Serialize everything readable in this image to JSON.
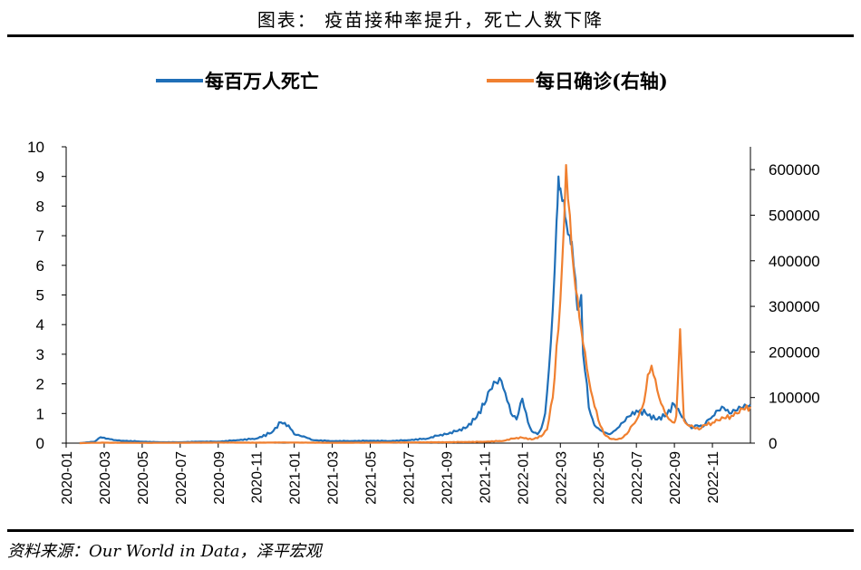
{
  "header": {
    "title": "图表： 疫苗接种率提升，死亡人数下降"
  },
  "footer": {
    "source": "资料来源：Our World in Data，泽平宏观"
  },
  "chart_data": {
    "type": "line",
    "title": "图表： 疫苗接种率提升，死亡人数下降",
    "legend_position": "top",
    "x_ticks": [
      "2020-01",
      "2020-03",
      "2020-05",
      "2020-07",
      "2020-09",
      "2020-11",
      "2021-01",
      "2021-03",
      "2021-05",
      "2021-07",
      "2021-09",
      "2021-11",
      "2022-01",
      "2022-03",
      "2022-05",
      "2022-07",
      "2022-09",
      "2022-11"
    ],
    "x_range_months": [
      0,
      36
    ],
    "y_left": {
      "min": 0,
      "max": 10,
      "ticks": [
        "0",
        "1",
        "2",
        "3",
        "4",
        "5",
        "6",
        "7",
        "8",
        "9",
        "10"
      ]
    },
    "y_right": {
      "min": 0,
      "max": 650000,
      "ticks": [
        "0",
        "100000",
        "200000",
        "300000",
        "400000",
        "500000",
        "600000"
      ]
    },
    "series": [
      {
        "name": "每百万人死亡",
        "axis": "left",
        "color": "#1f6fb8",
        "months": [
          0.7,
          1.5,
          1.8,
          2.2,
          2.6,
          3.0,
          4.0,
          5.0,
          6.0,
          7.0,
          8.0,
          9.0,
          10.0,
          10.8,
          11.3,
          11.7,
          12.0,
          12.3,
          12.6,
          13.0,
          14.0,
          15.0,
          16.0,
          17.0,
          18.0,
          19.0,
          19.5,
          20.0,
          20.5,
          21.0,
          21.5,
          22.0,
          22.3,
          22.6,
          22.9,
          23.1,
          23.4,
          23.7,
          24.0,
          24.3,
          24.5,
          24.8,
          25.0,
          25.2,
          25.4,
          25.6,
          25.8,
          25.9,
          26.0,
          26.2,
          26.3,
          26.5,
          26.6,
          26.8,
          26.9,
          27.1,
          27.2,
          27.4,
          27.5,
          27.7,
          27.8,
          28.0,
          28.2,
          28.4,
          28.6,
          28.8,
          29.0,
          29.3,
          29.6,
          30.0,
          30.5,
          31.0,
          31.5,
          32.0,
          32.3,
          32.6,
          32.9,
          33.2,
          33.5,
          33.8,
          34.0,
          34.3,
          34.6,
          34.9,
          35.2,
          35.5,
          35.8,
          36.0
        ],
        "values": [
          0.0,
          0.05,
          0.2,
          0.15,
          0.1,
          0.08,
          0.05,
          0.03,
          0.03,
          0.05,
          0.05,
          0.1,
          0.15,
          0.35,
          0.7,
          0.6,
          0.3,
          0.25,
          0.2,
          0.1,
          0.07,
          0.07,
          0.08,
          0.07,
          0.1,
          0.15,
          0.25,
          0.3,
          0.4,
          0.5,
          0.8,
          1.3,
          1.8,
          2.05,
          2.1,
          1.7,
          1.0,
          0.8,
          1.5,
          0.7,
          0.4,
          0.3,
          0.5,
          1.0,
          2.5,
          4.5,
          7.5,
          9.0,
          8.6,
          8.2,
          7.5,
          7.0,
          6.8,
          5.5,
          4.5,
          5.0,
          3.0,
          2.0,
          1.2,
          0.8,
          0.6,
          0.5,
          0.4,
          0.35,
          0.3,
          0.4,
          0.5,
          0.7,
          0.9,
          1.1,
          1.0,
          0.8,
          0.9,
          1.3,
          1.0,
          0.7,
          0.5,
          0.6,
          0.55,
          0.8,
          0.9,
          1.1,
          1.2,
          1.0,
          1.1,
          1.2,
          1.25,
          1.3
        ]
      },
      {
        "name": "每日确诊(右轴)",
        "axis": "right",
        "color": "#f08030",
        "months": [
          0.7,
          2.0,
          4.0,
          6.0,
          8.0,
          10.0,
          11.5,
          12.0,
          14.0,
          16.0,
          18.0,
          20.0,
          21.0,
          22.0,
          23.0,
          23.5,
          24.0,
          24.5,
          25.0,
          25.3,
          25.6,
          25.9,
          26.1,
          26.3,
          26.5,
          26.7,
          26.9,
          27.1,
          27.3,
          27.5,
          27.7,
          28.0,
          28.3,
          28.6,
          28.9,
          29.2,
          29.5,
          29.8,
          30.0,
          30.2,
          30.4,
          30.6,
          30.8,
          31.0,
          31.2,
          31.4,
          31.6,
          31.8,
          32.0,
          32.1,
          32.3,
          32.5,
          32.7,
          33.0,
          33.3,
          33.6,
          34.0,
          34.3,
          34.6,
          35.0,
          35.3,
          35.6,
          36.0
        ],
        "values": [
          0,
          1000,
          500,
          800,
          1200,
          1000,
          1500,
          1200,
          800,
          1000,
          1500,
          2000,
          2500,
          3000,
          5000,
          10000,
          12000,
          8000,
          15000,
          30000,
          100000,
          250000,
          400000,
          610000,
          500000,
          380000,
          320000,
          250000,
          200000,
          140000,
          100000,
          50000,
          20000,
          10000,
          8000,
          10000,
          20000,
          40000,
          50000,
          70000,
          90000,
          150000,
          170000,
          140000,
          100000,
          80000,
          60000,
          50000,
          45000,
          60000,
          250000,
          50000,
          40000,
          35000,
          30000,
          40000,
          45000,
          50000,
          55000,
          60000,
          65000,
          75000,
          80000
        ]
      }
    ]
  }
}
